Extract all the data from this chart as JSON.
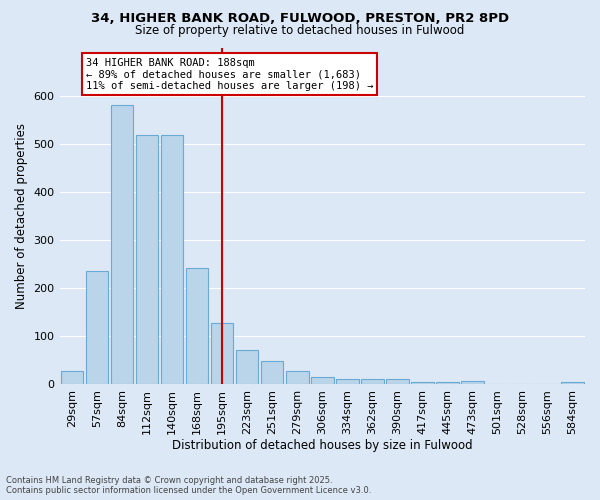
{
  "title_line1": "34, HIGHER BANK ROAD, FULWOOD, PRESTON, PR2 8PD",
  "title_line2": "Size of property relative to detached houses in Fulwood",
  "xlabel": "Distribution of detached houses by size in Fulwood",
  "ylabel": "Number of detached properties",
  "categories": [
    "29sqm",
    "57sqm",
    "84sqm",
    "112sqm",
    "140sqm",
    "168sqm",
    "195sqm",
    "223sqm",
    "251sqm",
    "279sqm",
    "306sqm",
    "334sqm",
    "362sqm",
    "390sqm",
    "417sqm",
    "445sqm",
    "473sqm",
    "501sqm",
    "528sqm",
    "556sqm",
    "584sqm"
  ],
  "values": [
    28,
    235,
    580,
    517,
    517,
    242,
    127,
    70,
    47,
    27,
    15,
    10,
    10,
    10,
    5,
    5,
    7,
    0,
    0,
    0,
    5
  ],
  "bar_color": "#bad4ea",
  "bar_edge_color": "#6aaad4",
  "vline_x_index": 6,
  "annotation_line1": "34 HIGHER BANK ROAD: 188sqm",
  "annotation_line2": "← 89% of detached houses are smaller (1,683)",
  "annotation_line3": "11% of semi-detached houses are larger (198) →",
  "annotation_box_color": "#ffffff",
  "annotation_box_edge_color": "#cc0000",
  "vline_color": "#cc0000",
  "background_color": "#dce8f5",
  "grid_color": "#ffffff",
  "ylim": [
    0,
    700
  ],
  "yticks": [
    0,
    100,
    200,
    300,
    400,
    500,
    600,
    700
  ],
  "footer_line1": "Contains HM Land Registry data © Crown copyright and database right 2025.",
  "footer_line2": "Contains public sector information licensed under the Open Government Licence v3.0."
}
